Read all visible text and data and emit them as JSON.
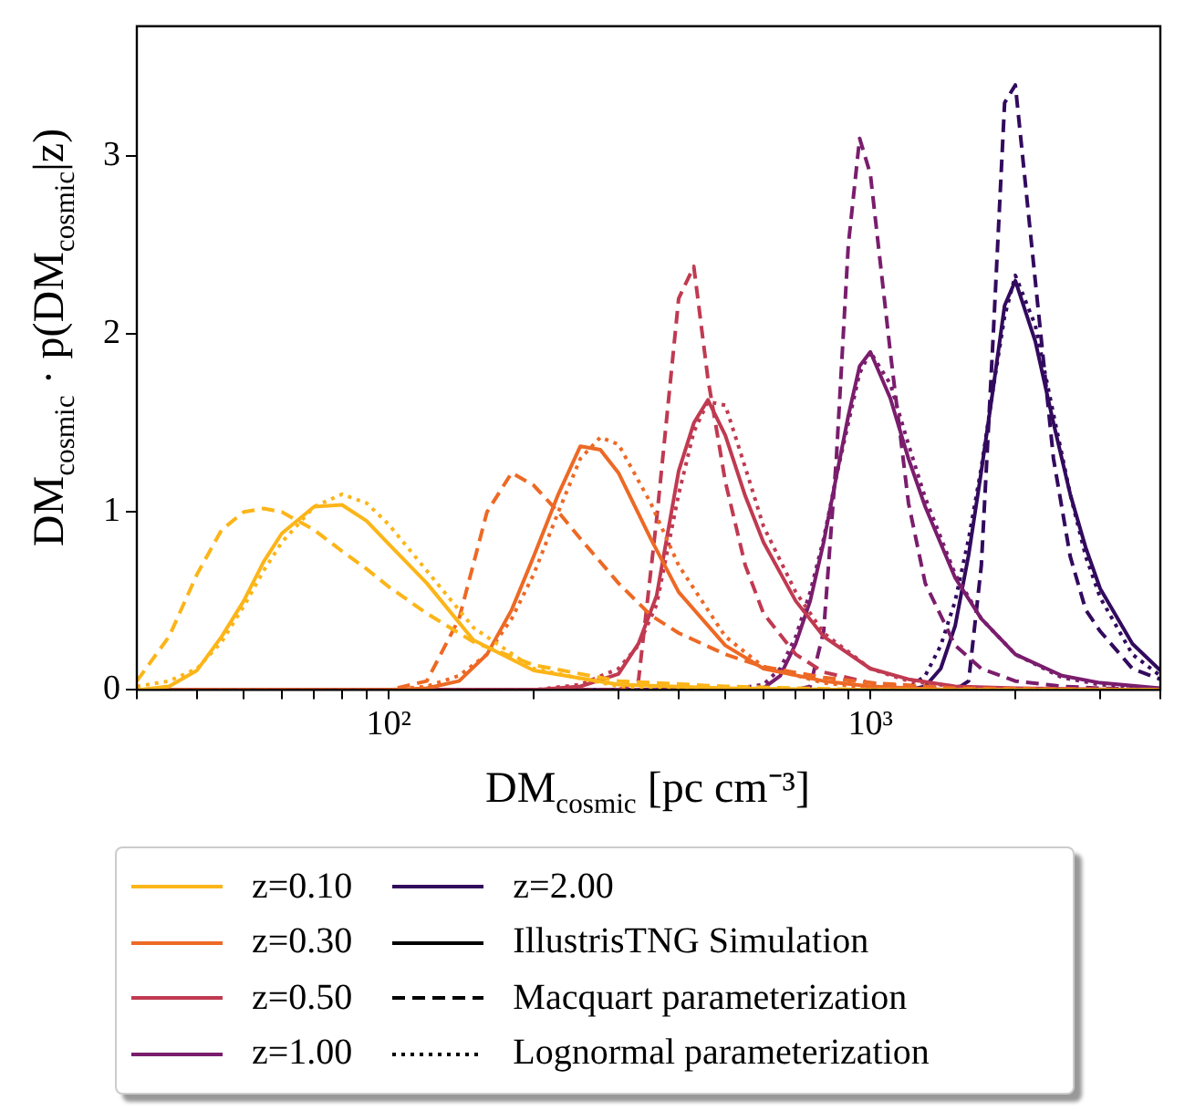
{
  "chart_data": {
    "type": "line",
    "xlabel": "DM$_{cosmic}$ [pc cm⁻³]",
    "ylabel": "DM$_{cosmic}$ · p(DM$_{cosmic}$|z)",
    "log": "x",
    "xlim": [
      30,
      4000
    ],
    "ylim": [
      0,
      3.73
    ],
    "xticks": [
      {
        "value": 30,
        "label": null
      },
      {
        "value": 40,
        "label": null
      },
      {
        "value": 50,
        "label": null
      },
      {
        "value": 60,
        "label": null
      },
      {
        "value": 70,
        "label": null
      },
      {
        "value": 80,
        "label": null
      },
      {
        "value": 90,
        "label": null
      },
      {
        "value": 100,
        "label": "10²"
      },
      {
        "value": 200,
        "label": null
      },
      {
        "value": 300,
        "label": null
      },
      {
        "value": 400,
        "label": null
      },
      {
        "value": 500,
        "label": null
      },
      {
        "value": 600,
        "label": null
      },
      {
        "value": 700,
        "label": null
      },
      {
        "value": 800,
        "label": null
      },
      {
        "value": 900,
        "label": null
      },
      {
        "value": 1000,
        "label": "10³"
      },
      {
        "value": 2000,
        "label": null
      },
      {
        "value": 3000,
        "label": null
      },
      {
        "value": 4000,
        "label": null
      }
    ],
    "yticks": [
      0,
      1,
      2,
      3
    ],
    "legend": "bottom",
    "series": [
      {
        "name": "z=0.10",
        "color": "#fcb519",
        "line_style": "solid",
        "x": [
          30,
          35,
          40,
          45,
          50,
          55,
          60,
          70,
          80,
          90,
          100,
          120,
          150,
          200,
          300,
          500,
          1000,
          4000
        ],
        "values": [
          0,
          0.02,
          0.11,
          0.3,
          0.5,
          0.72,
          0.88,
          1.03,
          1.04,
          0.95,
          0.82,
          0.6,
          0.28,
          0.11,
          0.03,
          0.01,
          0,
          0
        ]
      },
      {
        "color": "#fcb519",
        "line_style": "dashed",
        "x": [
          30,
          35,
          40,
          45,
          50,
          55,
          60,
          70,
          80,
          90,
          100,
          120,
          150,
          200,
          300,
          500,
          1000,
          4000
        ],
        "values": [
          0.05,
          0.3,
          0.65,
          0.9,
          1.0,
          1.02,
          1.0,
          0.9,
          0.78,
          0.68,
          0.58,
          0.43,
          0.27,
          0.14,
          0.05,
          0.02,
          0,
          0
        ]
      },
      {
        "color": "#fcb519",
        "line_style": "dotted",
        "x": [
          30,
          35,
          40,
          45,
          50,
          55,
          60,
          70,
          80,
          90,
          100,
          120,
          150,
          200,
          300,
          500,
          1000,
          4000
        ],
        "values": [
          0.02,
          0.05,
          0.12,
          0.27,
          0.47,
          0.67,
          0.83,
          1.03,
          1.1,
          1.05,
          0.93,
          0.67,
          0.35,
          0.12,
          0.02,
          0,
          0,
          0
        ]
      },
      {
        "name": "z=0.30",
        "color": "#ed6925",
        "line_style": "solid",
        "x": [
          30,
          100,
          120,
          140,
          160,
          180,
          200,
          225,
          250,
          275,
          300,
          350,
          400,
          500,
          600,
          800,
          1000,
          1500,
          4000
        ],
        "values": [
          0,
          0,
          0.01,
          0.05,
          0.2,
          0.45,
          0.75,
          1.1,
          1.37,
          1.35,
          1.22,
          0.85,
          0.55,
          0.25,
          0.12,
          0.05,
          0.02,
          0,
          0
        ]
      },
      {
        "color": "#ed6925",
        "line_style": "dashed",
        "x": [
          30,
          100,
          120,
          140,
          160,
          180,
          200,
          225,
          250,
          275,
          300,
          350,
          400,
          500,
          600,
          800,
          1000,
          1500,
          4000
        ],
        "values": [
          0,
          0,
          0.05,
          0.4,
          1.0,
          1.22,
          1.15,
          1.0,
          0.85,
          0.72,
          0.6,
          0.42,
          0.32,
          0.2,
          0.13,
          0.07,
          0.04,
          0.01,
          0
        ]
      },
      {
        "color": "#ed6925",
        "line_style": "dotted",
        "x": [
          30,
          100,
          120,
          140,
          160,
          180,
          200,
          225,
          250,
          275,
          300,
          350,
          400,
          500,
          600,
          800,
          1000,
          1500,
          4000
        ],
        "values": [
          0,
          0,
          0.02,
          0.08,
          0.2,
          0.4,
          0.65,
          1.0,
          1.3,
          1.42,
          1.38,
          1.05,
          0.7,
          0.3,
          0.13,
          0.04,
          0.01,
          0,
          0
        ]
      },
      {
        "name": "z=0.50",
        "color": "#c03a51",
        "line_style": "solid",
        "x": [
          30,
          200,
          250,
          300,
          330,
          360,
          400,
          430,
          460,
          500,
          550,
          600,
          700,
          800,
          1000,
          1200,
          1500,
          2000,
          4000
        ],
        "values": [
          0,
          0,
          0.02,
          0.09,
          0.26,
          0.53,
          1.23,
          1.5,
          1.63,
          1.43,
          1.09,
          0.83,
          0.5,
          0.3,
          0.12,
          0.06,
          0.02,
          0.01,
          0
        ]
      },
      {
        "color": "#c03a51",
        "line_style": "dashed",
        "x": [
          30,
          200,
          250,
          300,
          330,
          360,
          400,
          430,
          460,
          500,
          550,
          600,
          700,
          800,
          1000,
          1200,
          1500,
          2000,
          4000
        ],
        "values": [
          0,
          0,
          0,
          0,
          0.05,
          0.96,
          2.2,
          2.38,
          1.75,
          1.17,
          0.7,
          0.43,
          0.2,
          0.1,
          0.04,
          0.02,
          0.01,
          0,
          0
        ]
      },
      {
        "color": "#c03a51",
        "line_style": "dotted",
        "x": [
          30,
          200,
          250,
          300,
          330,
          360,
          400,
          430,
          460,
          500,
          550,
          600,
          700,
          800,
          1000,
          1200,
          1500,
          2000,
          4000
        ],
        "values": [
          0,
          0,
          0.03,
          0.12,
          0.25,
          0.48,
          1.1,
          1.45,
          1.62,
          1.6,
          1.25,
          0.92,
          0.55,
          0.32,
          0.12,
          0.05,
          0.02,
          0,
          0
        ]
      },
      {
        "name": "z=1.00",
        "color": "#7a1d6d",
        "line_style": "solid",
        "x": [
          30,
          500,
          600,
          650,
          700,
          750,
          800,
          850,
          900,
          950,
          1000,
          1100,
          1200,
          1300,
          1500,
          1700,
          2000,
          2500,
          3000,
          4000
        ],
        "values": [
          0,
          0,
          0.01,
          0.08,
          0.26,
          0.5,
          0.83,
          1.2,
          1.54,
          1.82,
          1.9,
          1.64,
          1.3,
          1.03,
          0.63,
          0.4,
          0.2,
          0.08,
          0.04,
          0.01
        ]
      },
      {
        "color": "#7a1d6d",
        "line_style": "dashed",
        "x": [
          30,
          500,
          600,
          650,
          700,
          750,
          800,
          850,
          900,
          950,
          1000,
          1100,
          1200,
          1300,
          1500,
          1700,
          2000,
          2500,
          3000,
          4000
        ],
        "values": [
          0,
          0,
          0,
          0,
          0,
          0.02,
          0.33,
          1.3,
          2.5,
          3.1,
          2.9,
          1.9,
          1.05,
          0.6,
          0.25,
          0.12,
          0.05,
          0.02,
          0.01,
          0
        ]
      },
      {
        "color": "#7a1d6d",
        "line_style": "dotted",
        "x": [
          30,
          500,
          600,
          650,
          700,
          750,
          800,
          850,
          900,
          950,
          1000,
          1100,
          1200,
          1300,
          1500,
          1700,
          2000,
          2500,
          3000,
          4000
        ],
        "values": [
          0,
          0,
          0.03,
          0.12,
          0.3,
          0.55,
          0.85,
          1.2,
          1.5,
          1.78,
          1.9,
          1.72,
          1.38,
          1.08,
          0.65,
          0.4,
          0.2,
          0.07,
          0.03,
          0
        ]
      },
      {
        "name": "z=2.00",
        "color": "#320a5e",
        "line_style": "solid",
        "x": [
          30,
          1000,
          1200,
          1300,
          1400,
          1500,
          1600,
          1700,
          1800,
          1900,
          2000,
          2200,
          2400,
          2600,
          2800,
          3000,
          3500,
          4000
        ],
        "values": [
          0,
          0,
          0,
          0.02,
          0.12,
          0.36,
          0.76,
          1.23,
          1.7,
          2.16,
          2.3,
          1.96,
          1.5,
          1.1,
          0.8,
          0.57,
          0.26,
          0.11
        ]
      },
      {
        "color": "#320a5e",
        "line_style": "dashed",
        "x": [
          30,
          1000,
          1200,
          1300,
          1400,
          1500,
          1600,
          1700,
          1800,
          1900,
          2000,
          2200,
          2400,
          2600,
          2800,
          3000,
          3500,
          4000
        ],
        "values": [
          0,
          0,
          0,
          0,
          0,
          0,
          0.05,
          0.7,
          2.0,
          3.3,
          3.4,
          2.3,
          1.3,
          0.75,
          0.45,
          0.33,
          0.12,
          0.06
        ]
      },
      {
        "color": "#320a5e",
        "line_style": "dotted",
        "x": [
          30,
          1000,
          1200,
          1300,
          1400,
          1500,
          1600,
          1700,
          1800,
          1900,
          2000,
          2200,
          2400,
          2600,
          2800,
          3000,
          3500,
          4000
        ],
        "values": [
          0,
          0,
          0.01,
          0.08,
          0.25,
          0.5,
          0.85,
          1.25,
          1.7,
          2.1,
          2.33,
          2.05,
          1.55,
          1.1,
          0.75,
          0.52,
          0.2,
          0.08
        ]
      },
      {
        "name": "IllustrisTNG Simulation",
        "color": "#000000",
        "line_style": "solid"
      },
      {
        "name": "Macquart parameterization",
        "color": "#000000",
        "line_style": "dashed"
      },
      {
        "name": "Lognormal parameterization",
        "color": "#000000",
        "line_style": "dotted"
      }
    ]
  }
}
